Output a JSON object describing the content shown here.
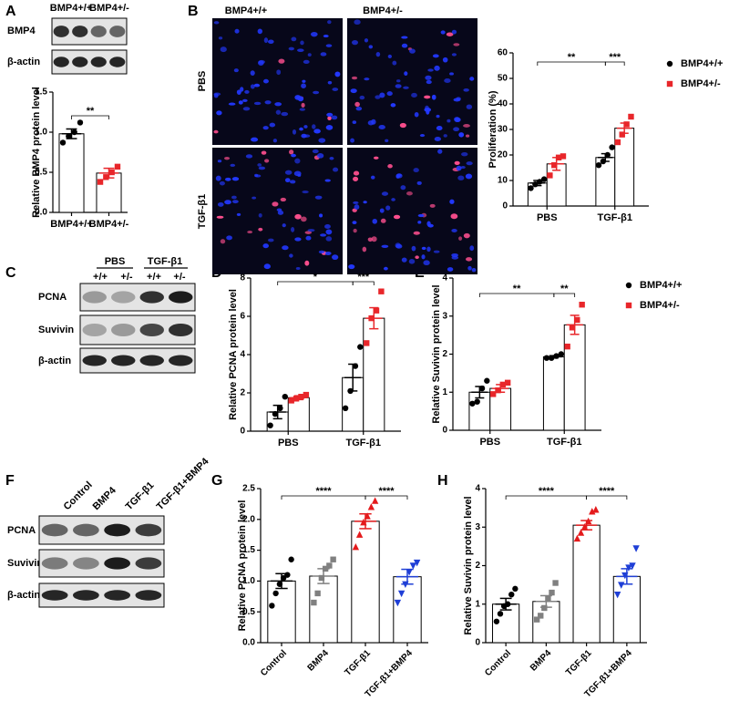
{
  "figure": {
    "panels": [
      "A",
      "B",
      "C",
      "D",
      "E",
      "F",
      "G",
      "H"
    ],
    "blot_A": {
      "columns": [
        "BMP4+/+",
        "BMP4+/-"
      ],
      "rows": [
        "BMP4",
        "β-actin"
      ]
    },
    "images_B": {
      "columns": [
        "BMP4+/+",
        "BMP4+/-"
      ],
      "rows": [
        "PBS",
        "TGF-β1"
      ]
    },
    "blot_C": {
      "groups": [
        "PBS",
        "TGF-β1"
      ],
      "columns": [
        "+/+",
        "+/-",
        "+/+",
        "+/-"
      ],
      "rows": [
        "PCNA",
        "Suvivin",
        "β-actin"
      ]
    },
    "blot_F": {
      "columns": [
        "Control",
        "BMP4",
        "TGF-β1",
        "TGF-β1+BMP4"
      ],
      "rows": [
        "PCNA",
        "Suvivin",
        "β-actin"
      ]
    }
  },
  "chart_data": [
    {
      "type": "bar",
      "ylabel": "Relative BMP4 protein level",
      "categories": [
        "BMP4+/+",
        "BMP4+/-"
      ],
      "series": [
        {
          "colors": [
            "#000000",
            "#e8262a"
          ],
          "markers": [
            "circle",
            "square"
          ],
          "values": [
            0.98,
            0.49
          ],
          "errors": [
            0.06,
            0.06
          ],
          "points": [
            [
              0.87,
              0.95,
              1.0,
              1.12
            ],
            [
              0.38,
              0.44,
              0.5,
              0.57
            ]
          ]
        }
      ],
      "ylim": [
        0,
        1.5
      ],
      "yticks": [
        {
          "value": 0,
          "label": "0.0"
        },
        0.5,
        {
          "value": 1,
          "label": "1.0"
        },
        1.5
      ],
      "annotations": [
        "**"
      ],
      "legend": false
    },
    {
      "type": "bar",
      "ylabel": "Proliferation (%)",
      "categories": [
        "PBS",
        "TGF-β1"
      ],
      "series": [
        {
          "name": "BMP4+/+",
          "color": "#000000",
          "marker": "circle",
          "values": [
            9,
            19
          ],
          "errors": [
            1,
            1.5
          ],
          "points": [
            [
              7,
              8.5,
              9.5,
              10.5
            ],
            [
              16,
              17.5,
              20,
              23
            ]
          ]
        },
        {
          "name": "BMP4+/-",
          "color": "#e8262a",
          "marker": "square",
          "values": [
            16.5,
            30.5
          ],
          "errors": [
            2.5,
            2
          ],
          "points": [
            [
              12,
              16,
              19,
              19.5
            ],
            [
              25,
              28,
              32,
              35
            ]
          ]
        }
      ],
      "ylim": [
        0,
        60
      ],
      "yticks": [
        0,
        10,
        20,
        30,
        40,
        50,
        60
      ],
      "annotations": [
        "**",
        "***"
      ],
      "legend": true
    },
    {
      "type": "bar",
      "ylabel": "Relative PCNA protein level",
      "categories": [
        "PBS",
        "TGF-β1"
      ],
      "series": [
        {
          "name": "BMP4+/+",
          "color": "#000000",
          "marker": "circle",
          "values": [
            1.0,
            2.8
          ],
          "errors": [
            0.35,
            0.7
          ],
          "points": [
            [
              0.3,
              0.9,
              1.2,
              1.8
            ],
            [
              1.2,
              2.1,
              3.4,
              4.4
            ]
          ]
        },
        {
          "name": "BMP4+/-",
          "color": "#e8262a",
          "marker": "square",
          "values": [
            1.75,
            5.9
          ],
          "errors": [
            0.1,
            0.55
          ],
          "points": [
            [
              1.6,
              1.7,
              1.8,
              1.9
            ],
            [
              4.6,
              5.9,
              6.3,
              7.3
            ]
          ]
        }
      ],
      "ylim": [
        0,
        8
      ],
      "yticks": [
        0,
        2,
        4,
        6,
        8
      ],
      "annotations": [
        "*",
        "***"
      ],
      "legend": false
    },
    {
      "type": "bar",
      "ylabel": "Relative Suvivin protein level",
      "categories": [
        "PBS",
        "TGF-β1"
      ],
      "series": [
        {
          "name": "BMP4+/+",
          "color": "#000000",
          "marker": "circle",
          "values": [
            1.0,
            1.93
          ],
          "errors": [
            0.15,
            0.03
          ],
          "points": [
            [
              0.7,
              0.75,
              1.1,
              1.3
            ],
            [
              1.9,
              1.9,
              1.95,
              2.0
            ]
          ]
        },
        {
          "name": "BMP4+/-",
          "color": "#e8262a",
          "marker": "square",
          "values": [
            1.1,
            2.77
          ],
          "errors": [
            0.1,
            0.25
          ],
          "points": [
            [
              0.95,
              1.05,
              1.2,
              1.25
            ],
            [
              2.2,
              2.7,
              2.9,
              3.3
            ]
          ]
        }
      ],
      "ylim": [
        0,
        4
      ],
      "yticks": [
        0,
        1,
        2,
        3,
        4
      ],
      "annotations": [
        "**",
        "**"
      ],
      "legend": true
    },
    {
      "type": "bar",
      "ylabel": "Relative PCNA protein level",
      "categories": [
        "Control",
        "BMP4",
        "TGF-β1",
        "TGF-β1+BMP4"
      ],
      "series": [
        {
          "colors": [
            "#000000",
            "#808080",
            "#e41a1c",
            "#1f3fd6"
          ],
          "markers": [
            "circle",
            "square",
            "triangle",
            "triangle-down"
          ],
          "values": [
            1.0,
            1.08,
            1.97,
            1.07
          ],
          "errors": [
            0.12,
            0.12,
            0.12,
            0.12
          ],
          "points": [
            [
              0.6,
              0.8,
              0.95,
              1.05,
              1.1,
              1.35
            ],
            [
              0.65,
              0.8,
              1.05,
              1.2,
              1.25,
              1.35
            ],
            [
              1.55,
              1.75,
              1.95,
              2.05,
              2.2,
              2.3
            ],
            [
              0.65,
              0.8,
              0.95,
              1.15,
              1.25,
              1.3
            ]
          ]
        }
      ],
      "ylim": [
        0,
        2.5
      ],
      "yticks": [
        {
          "value": 0,
          "label": "0.0"
        },
        0.5,
        {
          "value": 1,
          "label": "1.0"
        },
        1.5,
        {
          "value": 2,
          "label": "2.0"
        },
        2.5
      ],
      "annotations": [
        "****",
        "****"
      ],
      "legend": false
    },
    {
      "type": "bar",
      "ylabel": "Relative Suvivin protein level",
      "categories": [
        "Control",
        "BMP4",
        "TGF-β1",
        "TGF-β1+BMP4"
      ],
      "series": [
        {
          "colors": [
            "#000000",
            "#808080",
            "#e41a1c",
            "#1f3fd6"
          ],
          "markers": [
            "circle",
            "square",
            "triangle",
            "triangle-down"
          ],
          "values": [
            1.0,
            1.07,
            3.05,
            1.72
          ],
          "errors": [
            0.15,
            0.15,
            0.12,
            0.2
          ],
          "points": [
            [
              0.55,
              0.75,
              0.95,
              1.0,
              1.25,
              1.4
            ],
            [
              0.6,
              0.7,
              0.9,
              1.15,
              1.3,
              1.55
            ],
            [
              2.7,
              2.85,
              3.0,
              3.15,
              3.4,
              3.45
            ],
            [
              1.25,
              1.5,
              1.75,
              1.95,
              2.0,
              2.45
            ]
          ]
        }
      ],
      "ylim": [
        0,
        4
      ],
      "yticks": [
        0,
        1,
        2,
        3,
        4
      ],
      "annotations": [
        "****",
        "****"
      ],
      "legend": false
    }
  ]
}
